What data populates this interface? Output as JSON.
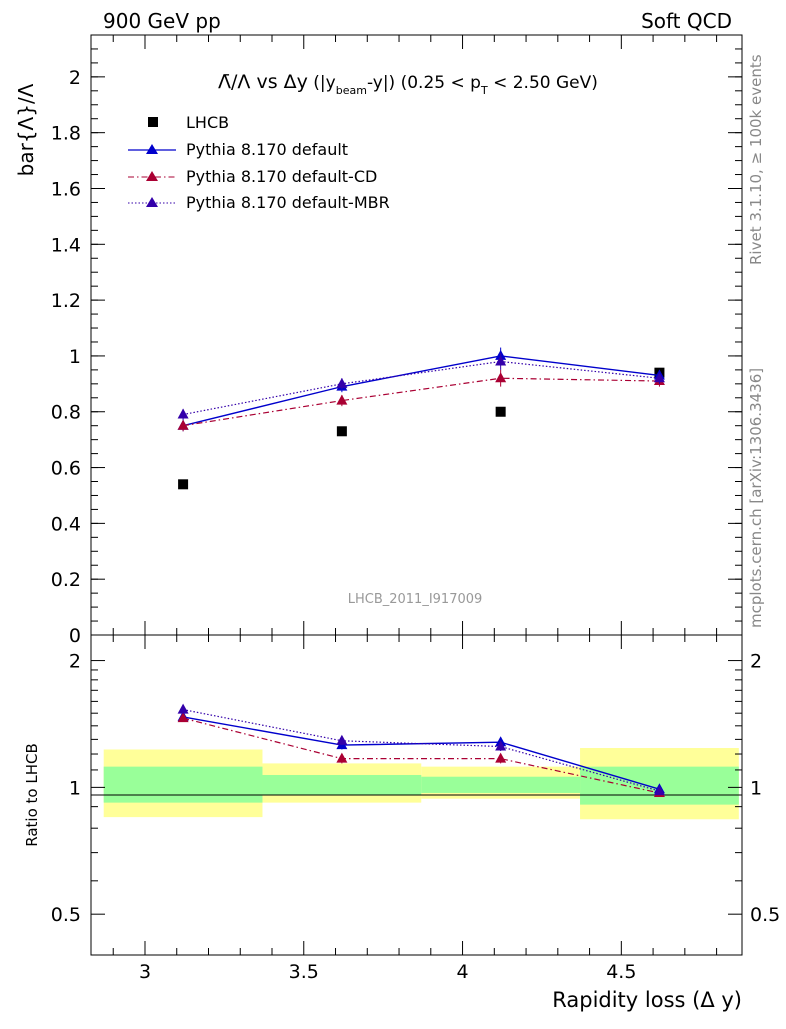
{
  "header": {
    "left": "900 GeV pp",
    "right": "Soft QCD"
  },
  "side_labels": {
    "top": "Rivet 3.1.10, ≥ 100k events",
    "bottom": "mcplots.cern.ch [arXiv:1306.3436]"
  },
  "watermark": "LHCB_2011_I917009",
  "chart_data": [
    {
      "type": "line",
      "panel": "main",
      "title": {
        "ratio": "Λ̄/Λ",
        "vs": " vs ",
        "dy": "Δy",
        "paren1": " (|y",
        "beam": "beam",
        "paren2": "-y|)",
        "range1": " (0.25 < p",
        "T": "T",
        "range2": " < 2.50 GeV)"
      },
      "ylabel": "bar{Λ}/Λ",
      "xlim": [
        2.83,
        4.88
      ],
      "ylim": [
        0,
        2.15
      ],
      "y_ticks": [
        0,
        0.2,
        0.4,
        0.6,
        0.8,
        1,
        1.2,
        1.4,
        1.6,
        1.8,
        2
      ],
      "y_tick_labels": [
        "0",
        "0.2",
        "0.4",
        "0.6",
        "0.8",
        "1",
        "1.2",
        "1.4",
        "1.6",
        "1.8",
        "2"
      ],
      "x": [
        3.12,
        3.62,
        4.12,
        4.62
      ],
      "legend_position": "top-left",
      "series": [
        {
          "name": "LHCB",
          "marker": "square",
          "color": "#000000",
          "values": [
            0.54,
            0.73,
            0.8,
            0.94
          ],
          "errors": [
            0.01,
            0.01,
            0.01,
            0.01
          ]
        },
        {
          "name": "Pythia 8.170 default",
          "marker": "triangle",
          "color": "#0000cc",
          "line": "solid",
          "values": [
            0.75,
            0.89,
            1.0,
            0.93
          ],
          "errors": [
            0.02,
            0.02,
            0.03,
            0.02
          ]
        },
        {
          "name": "Pythia 8.170 default-CD",
          "marker": "triangle",
          "color": "#aa0033",
          "line": "dashdot",
          "values": [
            0.75,
            0.84,
            0.92,
            0.91
          ],
          "errors": [
            0.02,
            0.02,
            0.03,
            0.02
          ]
        },
        {
          "name": "Pythia 8.170 default-MBR",
          "marker": "triangle",
          "color": "#3300aa",
          "line": "dotted",
          "values": [
            0.79,
            0.9,
            0.98,
            0.92
          ],
          "errors": [
            0.02,
            0.02,
            0.03,
            0.02
          ]
        }
      ]
    },
    {
      "type": "line",
      "panel": "ratio",
      "ylabel": "Ratio to LHCB",
      "xlabel": "Rapidity loss (Δ y)",
      "xlim": [
        2.83,
        4.88
      ],
      "ylim": [
        0.4,
        2.3
      ],
      "y_scale": "log",
      "y_ticks": [
        0.5,
        1,
        2
      ],
      "y_tick_labels": [
        "0.5",
        "1",
        "2"
      ],
      "x_ticks": [
        3,
        3.5,
        4,
        4.5
      ],
      "x_tick_labels": [
        "3",
        "3.5",
        "4",
        "4.5"
      ],
      "x": [
        3.12,
        3.62,
        4.12,
        4.62
      ],
      "bands": [
        {
          "x0": 2.87,
          "x1": 3.37,
          "yellow": [
            0.85,
            1.23
          ],
          "green": [
            0.92,
            1.12
          ]
        },
        {
          "x0": 3.37,
          "x1": 3.87,
          "yellow": [
            0.92,
            1.14
          ],
          "green": [
            0.96,
            1.07
          ]
        },
        {
          "x0": 3.87,
          "x1": 4.37,
          "yellow": [
            0.94,
            1.12
          ],
          "green": [
            0.97,
            1.06
          ]
        },
        {
          "x0": 4.37,
          "x1": 4.87,
          "yellow": [
            0.84,
            1.24
          ],
          "green": [
            0.91,
            1.12
          ]
        }
      ],
      "series": [
        {
          "name": "Pythia 8.170 default",
          "color": "#0000cc",
          "line": "solid",
          "values": [
            1.47,
            1.26,
            1.28,
            0.99
          ],
          "errors": [
            0.03,
            0.03,
            0.03,
            0.02
          ]
        },
        {
          "name": "Pythia 8.170 default-CD",
          "color": "#aa0033",
          "line": "dashdot",
          "values": [
            1.46,
            1.17,
            1.17,
            0.97
          ],
          "errors": [
            0.03,
            0.03,
            0.03,
            0.02
          ]
        },
        {
          "name": "Pythia 8.170 default-MBR",
          "color": "#3300aa",
          "line": "dotted",
          "values": [
            1.53,
            1.29,
            1.25,
            0.98
          ],
          "errors": [
            0.03,
            0.03,
            0.03,
            0.02
          ]
        }
      ]
    }
  ]
}
